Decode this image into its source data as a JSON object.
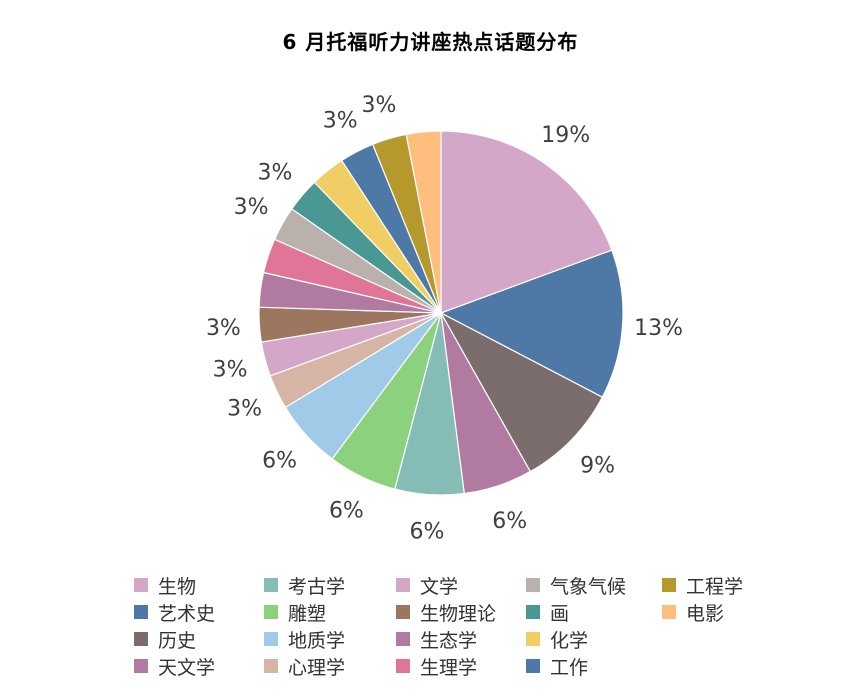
{
  "chart_data": {
    "type": "pie",
    "title": "6 月托福听力讲座热点话题分布",
    "slices": [
      {
        "label": "生物",
        "value": 19,
        "display": "19%",
        "color": "#d4a6c8"
      },
      {
        "label": "艺术史",
        "value": 13,
        "display": "13%",
        "color": "#4e79a7"
      },
      {
        "label": "历史",
        "value": 9,
        "display": "9%",
        "color": "#7a6d6c"
      },
      {
        "label": "天文学",
        "value": 6,
        "display": "6%",
        "color": "#b07aa1"
      },
      {
        "label": "考古学",
        "value": 6,
        "display": "6%",
        "color": "#86bcb6"
      },
      {
        "label": "雕塑",
        "value": 6,
        "display": "6%",
        "color": "#8cd17d"
      },
      {
        "label": "地质学",
        "value": 6,
        "display": "6%",
        "color": "#a0cbe8"
      },
      {
        "label": "心理学",
        "value": 3,
        "display": "3%",
        "color": "#d7b5a6"
      },
      {
        "label": "文学",
        "value": 3,
        "display": "3%",
        "color": "#d4a6c8"
      },
      {
        "label": "生物理论",
        "value": 3,
        "display": "3%",
        "color": "#9d7660"
      },
      {
        "label": "生态学",
        "value": 3,
        "display": "3%",
        "color": "#b07aa1"
      },
      {
        "label": "生理学",
        "value": 3,
        "display": "3%",
        "color": "#e17597"
      },
      {
        "label": "气象气候",
        "value": 3,
        "display": "3%",
        "color": "#bab0ac"
      },
      {
        "label": "画",
        "value": 3,
        "display": "3%",
        "color": "#499894"
      },
      {
        "label": "化学",
        "value": 3,
        "display": "3%",
        "color": "#f1ce63"
      },
      {
        "label": "工作",
        "value": 3,
        "display": "3%",
        "color": "#4e79a7"
      },
      {
        "label": "工程学",
        "value": 3,
        "display": "3%",
        "color": "#b6992d"
      },
      {
        "label": "电影",
        "value": 3,
        "display": "3%",
        "color": "#ffbe7d"
      }
    ],
    "visible_labels": [
      "19%",
      "13%",
      "9%",
      "6%",
      "6%",
      "6%",
      "6%",
      "3%",
      "3%",
      "3%",
      "",
      "",
      "3%",
      "3%",
      "",
      "3%",
      "3%",
      ""
    ],
    "legend": {
      "position": "bottom",
      "columns": [
        [
          "生物",
          "艺术史",
          "历史",
          "天文学"
        ],
        [
          "考古学",
          "雕塑",
          "地质学",
          "心理学"
        ],
        [
          "文学",
          "生物理论",
          "生态学",
          "生理学"
        ],
        [
          "气象气候",
          "画",
          "化学",
          "工作"
        ],
        [
          "工程学",
          "电影"
        ]
      ]
    }
  }
}
